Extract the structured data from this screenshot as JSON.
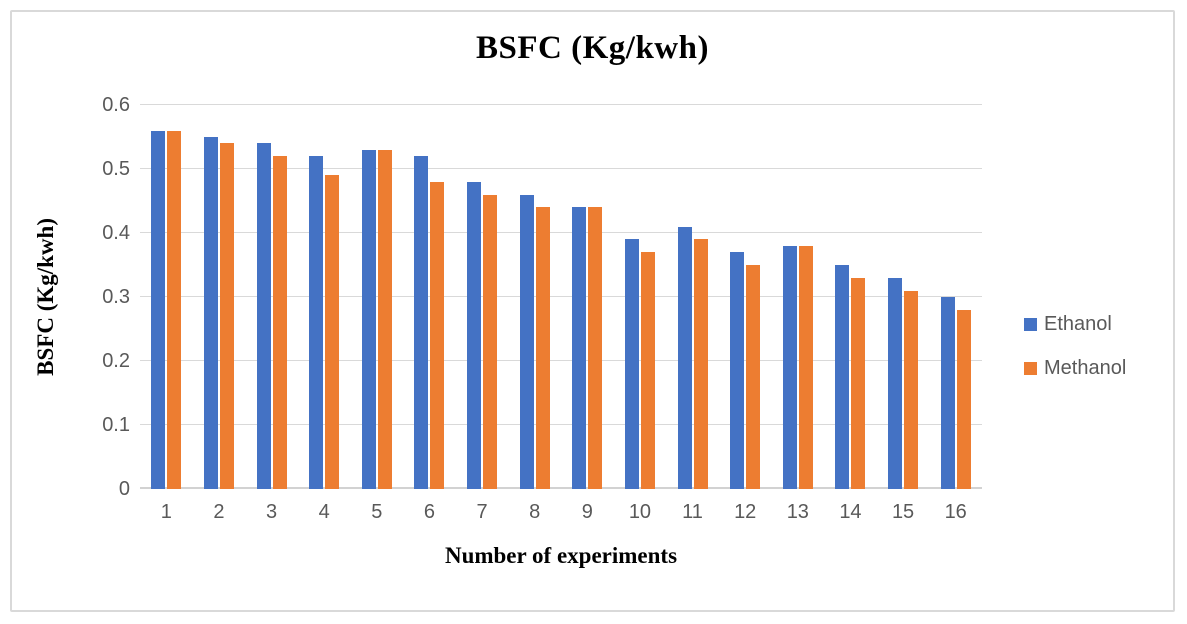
{
  "chart_data": {
    "type": "bar",
    "title": "BSFC (Kg/kwh)",
    "xlabel": "Number of experiments",
    "ylabel": "BSFC (Kg/kwh)",
    "categories": [
      "1",
      "2",
      "3",
      "4",
      "5",
      "6",
      "7",
      "8",
      "9",
      "10",
      "11",
      "12",
      "13",
      "14",
      "15",
      "16"
    ],
    "series": [
      {
        "name": "Ethanol",
        "color": "#4472C4",
        "values": [
          0.56,
          0.55,
          0.54,
          0.52,
          0.53,
          0.52,
          0.48,
          0.46,
          0.44,
          0.39,
          0.41,
          0.37,
          0.38,
          0.35,
          0.33,
          0.3
        ]
      },
      {
        "name": "Methanol",
        "color": "#ED7D31",
        "values": [
          0.56,
          0.54,
          0.52,
          0.49,
          0.53,
          0.48,
          0.46,
          0.44,
          0.44,
          0.37,
          0.39,
          0.35,
          0.38,
          0.33,
          0.31,
          0.28
        ]
      }
    ],
    "ylim": [
      0,
      0.6
    ],
    "y_ticks": [
      "0",
      "0.1",
      "0.2",
      "0.3",
      "0.4",
      "0.5",
      "0.6"
    ],
    "grid": "horizontal",
    "legend_position": "right",
    "frame_border_color": "#D9D9D9",
    "gridline_color": "#D9D9D9",
    "tick_label_color": "#595959"
  }
}
